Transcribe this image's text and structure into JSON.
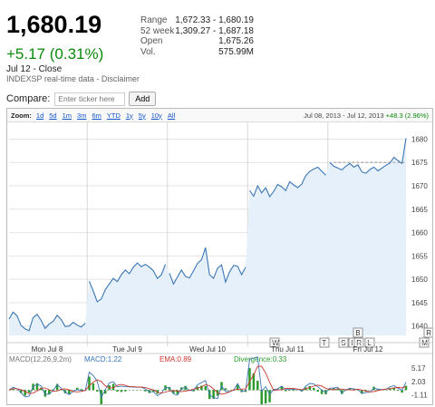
{
  "quote": {
    "price": "1,680.19",
    "change": "+5.17 (0.31%)",
    "date": "Jul 12 - Close",
    "source": "INDEXSP real-time data - Disclaimer"
  },
  "stats": [
    {
      "label": "Range",
      "value": "1,672.33 - 1,680.19"
    },
    {
      "label": "52 week",
      "value": "1,309.27 - 1,687.18"
    },
    {
      "label": "Open",
      "value": "1,675.26"
    },
    {
      "label": "Vol.",
      "value": "575.99M"
    }
  ],
  "compare": {
    "label": "Compare:",
    "placeholder": "Enter ticker here",
    "button": "Add"
  },
  "zoom": {
    "label": "Zoom:",
    "options": [
      "1d",
      "5d",
      "1m",
      "3m",
      "6m",
      "YTD",
      "1y",
      "5y",
      "10y",
      "All"
    ],
    "range_text": "Jul 08, 2013 - Jul 12, 2013",
    "range_change": "+48.3 (2.96%)"
  },
  "chart_data": {
    "type": "area",
    "y_ticks": [
      "1680",
      "1675",
      "1670",
      "1665",
      "1660",
      "1655",
      "1650",
      "1645",
      "1640"
    ],
    "ylim": [
      1638,
      1683
    ],
    "x_labels": [
      "Mon Jul 8",
      "Tue Jul 9",
      "Wed Jul 10",
      "Thu Jul 11",
      "Fri Jul 12"
    ],
    "series": [
      {
        "values": [
          1641.5,
          1643.0,
          1642.2,
          1640.1,
          1639.4,
          1639.0,
          1641.8,
          1642.5,
          1641.2,
          1639.5,
          1640.4,
          1641.0,
          1642.3,
          1641.4,
          1639.9,
          1640.0,
          1640.8,
          1640.2,
          1639.8,
          1640.6,
          1649.6,
          1647.5,
          1645.2,
          1645.8,
          1647.8,
          1649.0,
          1650.2,
          1649.5,
          1651.0,
          1652.0,
          1651.2,
          1652.6,
          1653.5,
          1652.7,
          1653.2,
          1652.6,
          1651.8,
          1650.2,
          1651.0,
          1653.2,
          1651.3,
          1649.0,
          1650.5,
          1652.0,
          1650.6,
          1650.3,
          1651.8,
          1653.4,
          1654.2,
          1656.8,
          1651.0,
          1650.2,
          1652.4,
          1653.1,
          1649.4,
          1651.6,
          1653.0,
          1652.8,
          1651.0,
          1652.6,
          1669.0,
          1667.8,
          1670.0,
          1668.5,
          1669.6,
          1667.7,
          1668.8,
          1670.3,
          1669.8,
          1669.0,
          1670.9,
          1670.2,
          1669.6,
          1670.4,
          1672.2,
          1673.1,
          1673.6,
          1674.0,
          1673.1,
          1672.3,
          1675.0,
          1674.2,
          1673.8,
          1673.4,
          1674.2,
          1674.8,
          1674.0,
          1674.5,
          1673.0,
          1672.7,
          1673.5,
          1674.0,
          1673.2,
          1673.8,
          1674.4,
          1674.9,
          1676.1,
          1675.4,
          1674.8,
          1680.19
        ]
      }
    ],
    "session_breaks": [
      20,
      40,
      60,
      80
    ],
    "prev_close": 1675.02,
    "events": [
      "W",
      "T",
      "S",
      "I",
      "R",
      "L",
      "B",
      "M",
      "R"
    ],
    "macd": {
      "label": "MACD(12,26,9,2m)",
      "macd": "MACD:1.22",
      "ema": "EMA:0.89",
      "divergence": "Divergence:0.33",
      "y_ticks": [
        "5.17",
        "2.03",
        "-1.11"
      ]
    }
  },
  "colors": {
    "line": "#3a76b5",
    "fill": "#e5f0fa",
    "up": "#0a8a0a",
    "macd_red": "#c8372d",
    "div_green": "#2c9a2c",
    "link": "#1155cc"
  }
}
